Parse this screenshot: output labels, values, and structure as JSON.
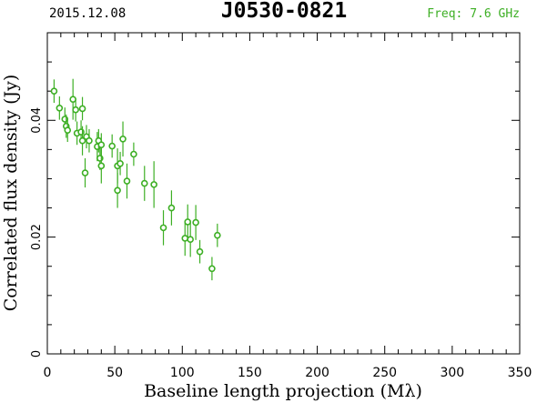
{
  "header": {
    "date": "2015.12.08",
    "source": "J0530-0821",
    "freq": "Freq: 7.6 GHz"
  },
  "colors": {
    "data": "#3daf24",
    "axis": "#000000"
  },
  "chart_data": {
    "type": "scatter",
    "xlabel": "Baseline length projection (Mλ)",
    "ylabel": "Correlated flux density (Jy)",
    "xlim": [
      0,
      350
    ],
    "ylim": [
      0,
      0.055
    ],
    "xticks": [
      0,
      50,
      100,
      150,
      200,
      250,
      300,
      350
    ],
    "yticks": [
      0,
      0.02,
      0.04
    ],
    "ytick_labels": [
      "0",
      "0.02",
      "0.04"
    ],
    "series": [
      {
        "points": [
          {
            "x": 5,
            "y": 0.045,
            "err": 0.002
          },
          {
            "x": 9,
            "y": 0.0421,
            "err": 0.002
          },
          {
            "x": 13,
            "y": 0.0402,
            "err": 0.002
          },
          {
            "x": 14,
            "y": 0.039,
            "err": 0.002
          },
          {
            "x": 15,
            "y": 0.0383,
            "err": 0.002
          },
          {
            "x": 19,
            "y": 0.0436,
            "err": 0.0035
          },
          {
            "x": 21,
            "y": 0.0418,
            "err": 0.002
          },
          {
            "x": 22,
            "y": 0.0378,
            "err": 0.002
          },
          {
            "x": 25,
            "y": 0.038,
            "err": 0.002
          },
          {
            "x": 26,
            "y": 0.0365,
            "err": 0.0025
          },
          {
            "x": 26,
            "y": 0.042,
            "err": 0.002
          },
          {
            "x": 28,
            "y": 0.031,
            "err": 0.0025
          },
          {
            "x": 29,
            "y": 0.0372,
            "err": 0.002
          },
          {
            "x": 31,
            "y": 0.0365,
            "err": 0.002
          },
          {
            "x": 37,
            "y": 0.0355,
            "err": 0.0025
          },
          {
            "x": 38,
            "y": 0.0365,
            "err": 0.002
          },
          {
            "x": 39,
            "y": 0.0335,
            "err": 0.002
          },
          {
            "x": 40,
            "y": 0.0322,
            "err": 0.003
          },
          {
            "x": 40,
            "y": 0.0358,
            "err": 0.002
          },
          {
            "x": 48,
            "y": 0.0356,
            "err": 0.002
          },
          {
            "x": 52,
            "y": 0.0322,
            "err": 0.003
          },
          {
            "x": 52,
            "y": 0.028,
            "err": 0.003
          },
          {
            "x": 54,
            "y": 0.0326,
            "err": 0.002
          },
          {
            "x": 56,
            "y": 0.0368,
            "err": 0.003
          },
          {
            "x": 59,
            "y": 0.0296,
            "err": 0.003
          },
          {
            "x": 64,
            "y": 0.0342,
            "err": 0.002
          },
          {
            "x": 72,
            "y": 0.0292,
            "err": 0.003
          },
          {
            "x": 79,
            "y": 0.029,
            "err": 0.004
          },
          {
            "x": 86,
            "y": 0.0216,
            "err": 0.003
          },
          {
            "x": 92,
            "y": 0.025,
            "err": 0.003
          },
          {
            "x": 102,
            "y": 0.0198,
            "err": 0.003
          },
          {
            "x": 104,
            "y": 0.0226,
            "err": 0.003
          },
          {
            "x": 106,
            "y": 0.0196,
            "err": 0.003
          },
          {
            "x": 110,
            "y": 0.0225,
            "err": 0.003
          },
          {
            "x": 113,
            "y": 0.0175,
            "err": 0.002
          },
          {
            "x": 122,
            "y": 0.0146,
            "err": 0.002
          },
          {
            "x": 126,
            "y": 0.0203,
            "err": 0.002
          }
        ]
      }
    ]
  }
}
